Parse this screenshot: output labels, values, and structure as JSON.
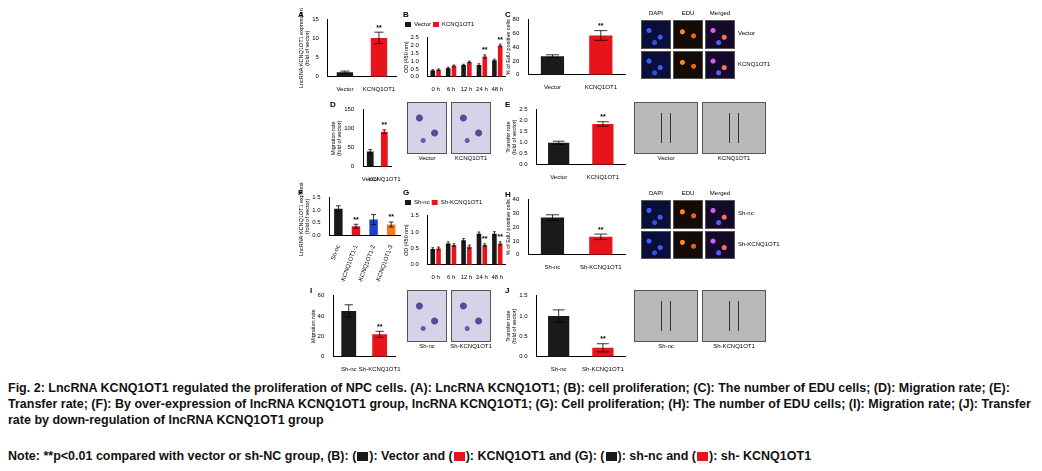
{
  "chart_data": [
    {
      "title": "A",
      "type": "bar",
      "categories": [
        "Vector",
        "KCNQ1OT1"
      ],
      "values": [
        1.2,
        10.2
      ],
      "errors": [
        0.3,
        1.5
      ],
      "annotations": [
        null,
        "**"
      ],
      "colors": [
        "#1a1a1a",
        "#e8141b"
      ],
      "ylabel": [
        "LncRNA KCNQ1OT1 expression",
        "(fold of vector)"
      ],
      "ylim": [
        0,
        15
      ],
      "yticks": [
        0,
        5,
        10,
        15
      ],
      "grid": false
    },
    {
      "title": "B",
      "type": "bar",
      "categories": [
        "0 h",
        "6 h",
        "12 h",
        "24 h",
        "48 h"
      ],
      "series": [
        {
          "name": "Vector",
          "color": "#1a1a1a",
          "values": [
            0.4,
            0.55,
            0.75,
            0.75,
            1.05
          ],
          "errors": [
            0.05,
            0.06,
            0.05,
            0.08,
            0.08
          ],
          "annotations": [
            null,
            null,
            null,
            null,
            null
          ]
        },
        {
          "name": "KCNQ1OT1",
          "color": "#e8141b",
          "values": [
            0.45,
            0.7,
            0.95,
            1.3,
            2.0
          ],
          "errors": [
            0.05,
            0.05,
            0.05,
            0.1,
            0.08
          ],
          "annotations": [
            null,
            null,
            null,
            "**",
            "**"
          ]
        }
      ],
      "ylabel": "OD (450 nm)",
      "ylim": [
        0,
        2.5
      ],
      "yticks": [
        {
          "value": 0,
          "label": "0.0"
        },
        0.5,
        {
          "value": 1,
          "label": "1.0"
        },
        1.5,
        {
          "value": 2,
          "label": "2.0"
        },
        2.5
      ],
      "legend": "top-left",
      "grid": false
    },
    {
      "title": "C",
      "type": "bar",
      "categories": [
        "Vector",
        "KCNQ1OT1"
      ],
      "values": [
        27,
        57
      ],
      "errors": [
        2,
        7
      ],
      "annotations": [
        null,
        "**"
      ],
      "colors": [
        "#1a1a1a",
        "#e8141b"
      ],
      "ylabel": "% of EdU positive cells",
      "ylim": [
        0,
        80
      ],
      "yticks": [
        0,
        20,
        40,
        60,
        80
      ],
      "grid": false,
      "images": {
        "columns": [
          "DAPI",
          "EDU",
          "Merged"
        ],
        "rows": [
          "Vector",
          "KCNQ1OT1"
        ]
      }
    },
    {
      "title": "D",
      "type": "bar",
      "categories": [
        "Vector",
        "KCNQ1OT1"
      ],
      "values": [
        40,
        92
      ],
      "errors": [
        5,
        5
      ],
      "annotations": [
        null,
        "**"
      ],
      "colors": [
        "#1a1a1a",
        "#e8141b"
      ],
      "ylabel": [
        "Migration rate",
        "(fold of vector)"
      ],
      "ylim": [
        0,
        150
      ],
      "yticks": [
        0,
        50,
        100,
        150
      ],
      "grid": false,
      "images": {
        "labels": [
          "Vector",
          "KCNQ1OT1"
        ]
      }
    },
    {
      "title": "E",
      "type": "bar",
      "categories": [
        "Vector",
        "KCNQ1OT1"
      ],
      "values": [
        1.0,
        1.85
      ],
      "errors": [
        0.07,
        0.1
      ],
      "annotations": [
        null,
        "**"
      ],
      "colors": [
        "#1a1a1a",
        "#e8141b"
      ],
      "ylabel": [
        "Transfer rate",
        "(fold of vector)"
      ],
      "ylim": [
        0,
        2.5
      ],
      "yticks": [
        {
          "value": 0,
          "label": "0.0"
        },
        0.5,
        {
          "value": 1,
          "label": "1.0"
        },
        1.5,
        {
          "value": 2,
          "label": "2.0"
        },
        2.5
      ],
      "grid": false,
      "images": {
        "labels": [
          "Vector",
          "KCNQ1OT1"
        ]
      }
    },
    {
      "title": "F",
      "type": "bar",
      "categories": [
        "Sh-nc",
        "Sh-KCNQ1OT1-1",
        "Sh-KCNQ1OT1-2",
        "Sh-KCNQ1OT1-3"
      ],
      "values": [
        1.05,
        0.35,
        0.62,
        0.42
      ],
      "errors": [
        0.12,
        0.08,
        0.2,
        0.1
      ],
      "annotations": [
        null,
        "**",
        null,
        "**"
      ],
      "colors": [
        "#1a1a1a",
        "#e8141b",
        "#1f3fcf",
        "#f47b20"
      ],
      "ylabel": [
        "LncRNA KCNQ1OT1 expression",
        "(fold of vector)"
      ],
      "ylim": [
        0,
        1.5
      ],
      "yticks": [
        {
          "value": 0,
          "label": "0.0"
        },
        0.5,
        {
          "value": 1,
          "label": "1.0"
        },
        1.5
      ],
      "grid": false
    },
    {
      "title": "G",
      "type": "bar",
      "categories": [
        "0 h",
        "6 h",
        "12 h",
        "24 h",
        "48 h"
      ],
      "series": [
        {
          "name": "Sh-nc",
          "color": "#1a1a1a",
          "values": [
            0.48,
            0.65,
            0.75,
            0.95,
            0.95
          ],
          "errors": [
            0.04,
            0.05,
            0.05,
            0.05,
            0.06
          ],
          "annotations": [
            null,
            null,
            null,
            null,
            null
          ]
        },
        {
          "name": "Sh-KCNQ1OT1",
          "color": "#e8141b",
          "values": [
            0.5,
            0.6,
            0.55,
            0.6,
            0.65
          ],
          "errors": [
            0.04,
            0.04,
            0.05,
            0.04,
            0.05
          ],
          "annotations": [
            null,
            null,
            null,
            "**",
            "**"
          ]
        }
      ],
      "ylabel": "OD (450 nm)",
      "ylim": [
        0,
        1.5
      ],
      "yticks": [
        {
          "value": 0,
          "label": "0.0"
        },
        0.5,
        {
          "value": 1,
          "label": "1.0"
        },
        1.5
      ],
      "legend": "top-left",
      "grid": false
    },
    {
      "title": "H",
      "type": "bar",
      "categories": [
        "Sh-nc",
        "Sh-KCNQ1OT1"
      ],
      "values": [
        27,
        13
      ],
      "errors": [
        2,
        2
      ],
      "annotations": [
        null,
        "**"
      ],
      "colors": [
        "#1a1a1a",
        "#e8141b"
      ],
      "ylabel": "% of EdU positive cells",
      "ylim": [
        0,
        40
      ],
      "yticks": [
        0,
        10,
        20,
        30,
        40
      ],
      "grid": false,
      "images": {
        "columns": [
          "DAPI",
          "EDU",
          "Merged"
        ],
        "rows": [
          "Sh-nc",
          "Sh-KCNQ1OT1"
        ]
      }
    },
    {
      "title": "I",
      "type": "bar",
      "categories": [
        "Sh-nc",
        "Sh-KCNQ1OT1"
      ],
      "values": [
        45,
        22
      ],
      "errors": [
        6,
        3
      ],
      "annotations": [
        null,
        "**"
      ],
      "colors": [
        "#1a1a1a",
        "#e8141b"
      ],
      "ylabel": "Migration rate",
      "ylim": [
        0,
        60
      ],
      "yticks": [
        0,
        20,
        40,
        60
      ],
      "grid": false,
      "images": {
        "labels": [
          "Sh-nc",
          "Sh-KCNQ1OT1"
        ]
      }
    },
    {
      "title": "J",
      "type": "bar",
      "categories": [
        "Sh-nc",
        "Sh-KCNQ1OT1"
      ],
      "values": [
        1.0,
        0.22
      ],
      "errors": [
        0.15,
        0.1
      ],
      "annotations": [
        null,
        "**"
      ],
      "colors": [
        "#1a1a1a",
        "#e8141b"
      ],
      "ylabel": [
        "Transfer rate",
        "(fold of vector)"
      ],
      "ylim": [
        0,
        1.5
      ],
      "yticks": [
        {
          "value": 0,
          "label": "0.0"
        },
        0.5,
        {
          "value": 1,
          "label": "1.0"
        },
        1.5
      ],
      "grid": false,
      "images": {
        "labels": [
          "Sh-nc",
          "Sh-KCNQ1OT1"
        ]
      }
    }
  ],
  "caption": "Fig. 2: LncRNA KCNQ1OT1 regulated the proliferation of NPC cells. (A): LncRNA KCNQ1OT1; (B): cell proliferation; (C): The number of EDU cells; (D): Migration rate; (E): Transfer rate; (F): By over-expression of lncRNA KCNQ1OT1 group, lncRNA KCNQ1OT1; (G): Cell proliferation; (H): The number of EDU cells; (I): Migration rate; (J): Transfer rate by down-regulation of lncRNA KCNQ1OT1 group",
  "note": [
    {
      "text": "Note: **p<0.01 compared with vector or sh-NC group, (B): ("
    },
    {
      "color": "#1a1a1a"
    },
    {
      "text": "): Vector and ("
    },
    {
      "color": "#e8141b"
    },
    {
      "text": "): KCNQ1OT1 and (G): ("
    },
    {
      "color": "#1a1a1a"
    },
    {
      "text": "): sh-nc and ("
    },
    {
      "color": "#e8141b"
    },
    {
      "text": "): sh- KCNQ1OT1"
    }
  ]
}
